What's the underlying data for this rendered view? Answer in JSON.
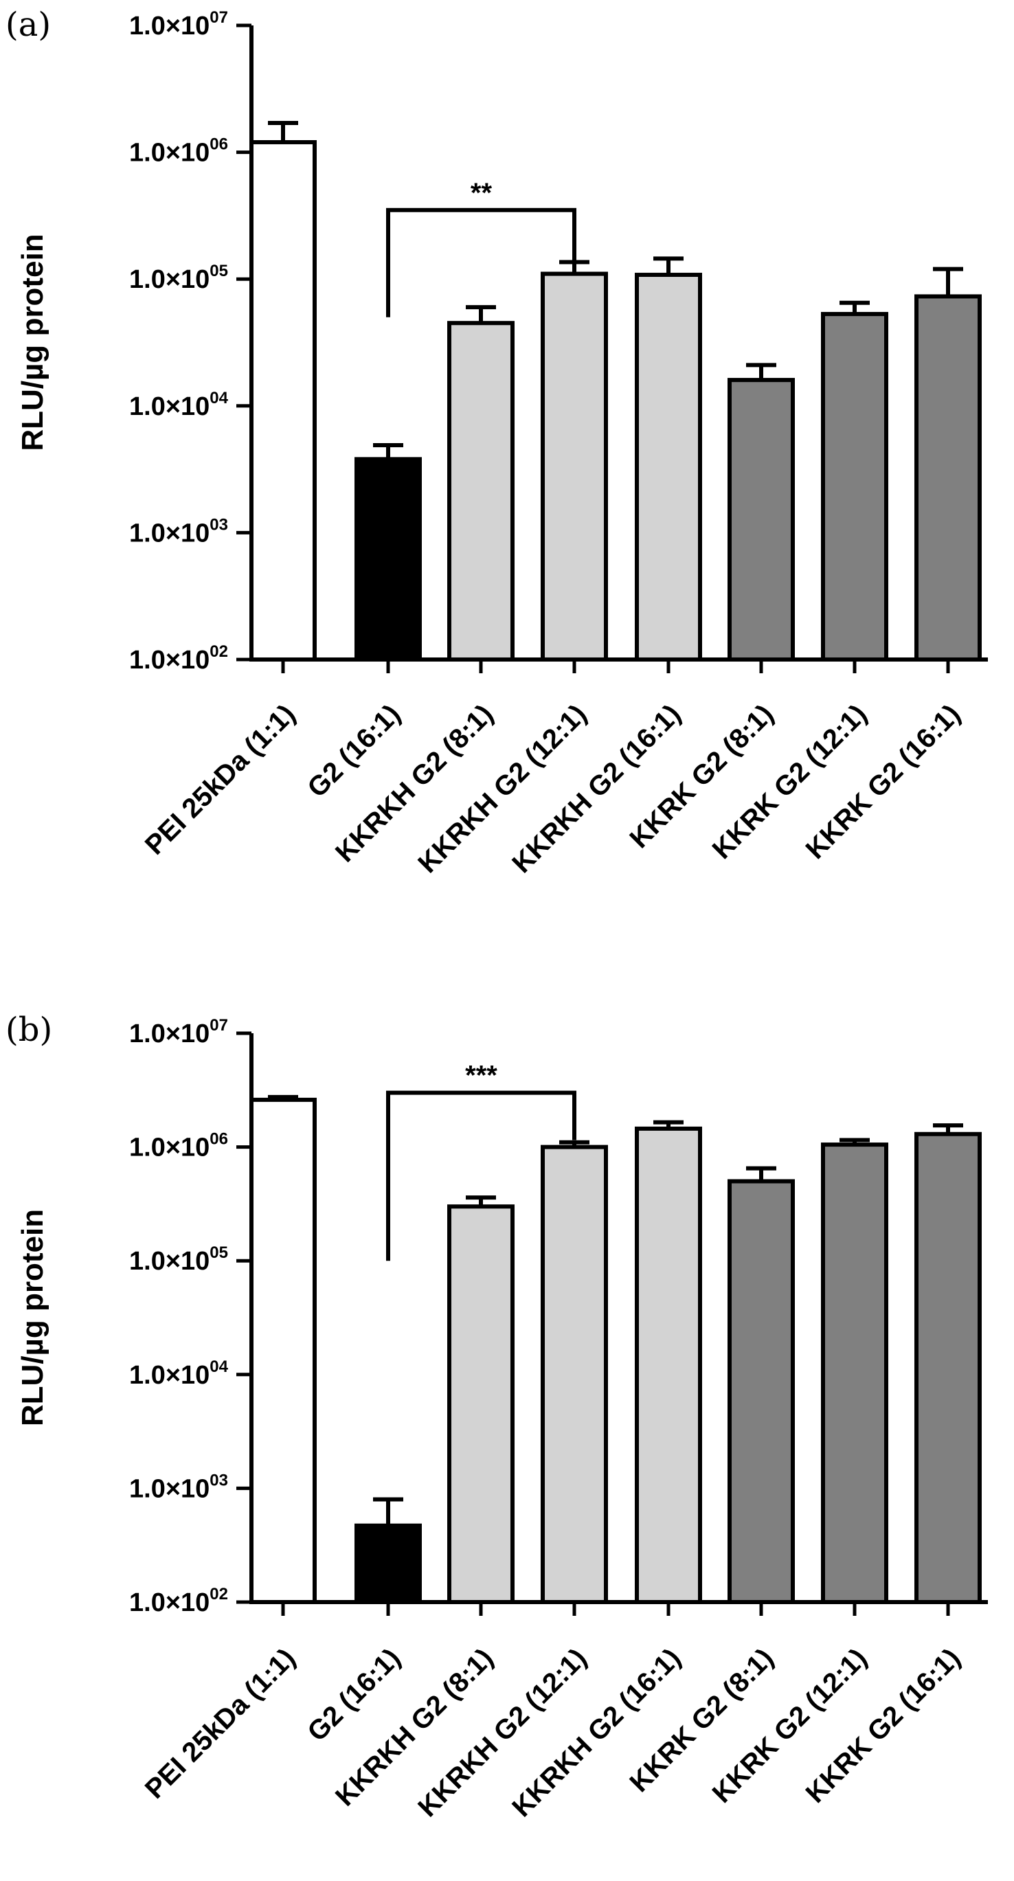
{
  "chart_data": [
    {
      "type": "bar",
      "panel_label": "(a)",
      "ylabel": "RLU/µg protein",
      "yscale": "log",
      "ylim": [
        100,
        10000000
      ],
      "yticks": [
        {
          "value": 100,
          "mantissa": "1.0×10",
          "exponent": "02"
        },
        {
          "value": 1000,
          "mantissa": "1.0×10",
          "exponent": "03"
        },
        {
          "value": 10000,
          "mantissa": "1.0×10",
          "exponent": "04"
        },
        {
          "value": 100000,
          "mantissa": "1.0×10",
          "exponent": "05"
        },
        {
          "value": 1000000,
          "mantissa": "1.0×10",
          "exponent": "06"
        },
        {
          "value": 10000000,
          "mantissa": "1.0×10",
          "exponent": "07"
        }
      ],
      "categories": [
        "PEI 25kDa (1:1)",
        "G2 (16:1)",
        "KKRKH G2 (8:1)",
        "KKRKH G2 (12:1)",
        "KKRKH G2 (16:1)",
        "KKRK G2 (8:1)",
        "KKRK G2 (12:1)",
        "KKRK G2 (16:1)"
      ],
      "values": [
        1200000,
        3800,
        45000,
        110000,
        108000,
        16000,
        53000,
        73000
      ],
      "error_upper": [
        1700000,
        4900,
        60000,
        136000,
        145000,
        21000,
        65000,
        120000
      ],
      "bar_colors": [
        "#ffffff",
        "#000000",
        "#d3d3d3",
        "#d3d3d3",
        "#d3d3d3",
        "#808080",
        "#808080",
        "#808080"
      ],
      "significance": {
        "from": 1,
        "to": 3,
        "label": "**",
        "bracket_y": 350000,
        "left_drop_to": 50000,
        "right_drop_to": 140000
      }
    },
    {
      "type": "bar",
      "panel_label": "(b)",
      "ylabel": "RLU/µg protein",
      "yscale": "log",
      "ylim": [
        100,
        10000000
      ],
      "yticks": [
        {
          "value": 100,
          "mantissa": "1.0×10",
          "exponent": "02"
        },
        {
          "value": 1000,
          "mantissa": "1.0×10",
          "exponent": "03"
        },
        {
          "value": 10000,
          "mantissa": "1.0×10",
          "exponent": "04"
        },
        {
          "value": 100000,
          "mantissa": "1.0×10",
          "exponent": "05"
        },
        {
          "value": 1000000,
          "mantissa": "1.0×10",
          "exponent": "06"
        },
        {
          "value": 10000000,
          "mantissa": "1.0×10",
          "exponent": "07"
        }
      ],
      "categories": [
        "PEI 25kDa (1:1)",
        "G2 (16:1)",
        "KKRKH G2 (8:1)",
        "KKRKH G2 (12:1)",
        "KKRKH G2 (16:1)",
        "KKRK G2 (8:1)",
        "KKRK G2 (12:1)",
        "KKRK G2 (16:1)"
      ],
      "values": [
        2600000,
        470,
        300000,
        1000000,
        1450000,
        500000,
        1050000,
        1300000
      ],
      "error_upper": [
        2750000,
        800,
        360000,
        1100000,
        1650000,
        650000,
        1150000,
        1550000
      ],
      "bar_colors": [
        "#ffffff",
        "#000000",
        "#d3d3d3",
        "#d3d3d3",
        "#d3d3d3",
        "#808080",
        "#808080",
        "#808080"
      ],
      "significance": {
        "from": 1,
        "to": 3,
        "label": "***",
        "bracket_y": 3000000,
        "left_drop_to": 100000,
        "right_drop_to": 1150000
      }
    }
  ]
}
